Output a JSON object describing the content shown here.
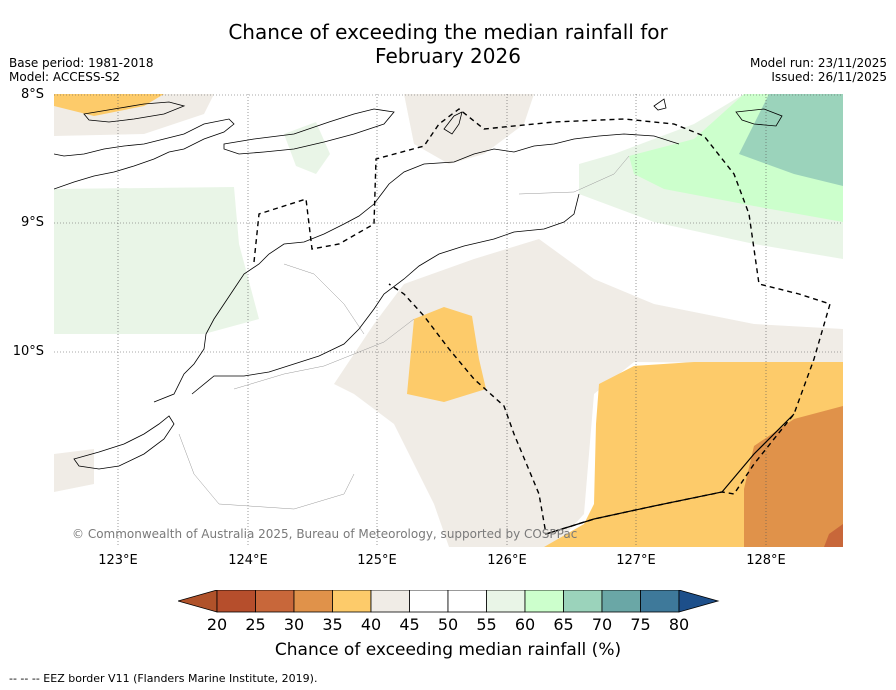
{
  "title": {
    "line1": "Chance of exceeding the median rainfall for",
    "line2": "February 2026"
  },
  "meta": {
    "base_period": "Base period: 1981-2018",
    "model": "Model: ACCESS-S2",
    "model_run": "Model run: 23/11/2025",
    "issued": "Issued: 26/11/2025"
  },
  "map": {
    "lat_labels": [
      "8°S",
      "9°S",
      "10°S"
    ],
    "lon_labels": [
      "123°E",
      "124°E",
      "125°E",
      "126°E",
      "127°E",
      "128°E"
    ],
    "copyright": "© Commonwealth of Australia 2025, Bureau of Meteorology, supported by COSPPac",
    "region_categories": {
      "light_orange": "35-40",
      "light_grey": "40-45",
      "dark_orange": "30-35",
      "light_green": "55-60",
      "green": "60-65",
      "teal": "65-70"
    }
  },
  "colorbar": {
    "ticks": [
      "20",
      "25",
      "30",
      "35",
      "40",
      "45",
      "50",
      "55",
      "60",
      "65",
      "70",
      "75",
      "80"
    ],
    "colors": [
      "#b0522a",
      "#b64e2c",
      "#c8673a",
      "#e0924a",
      "#fdcb6a",
      "#f0ece6",
      "#ffffff",
      "#ffffff",
      "#e9f5e7",
      "#ccffcc",
      "#9bd3bb",
      "#6aa7a6",
      "#3e799a",
      "#1d4f8a"
    ],
    "label": "Chance of exceeding median rainfall (%)"
  },
  "footnote": "--  --  -- EEZ border V11 (Flanders Marine Institute, 2019)."
}
